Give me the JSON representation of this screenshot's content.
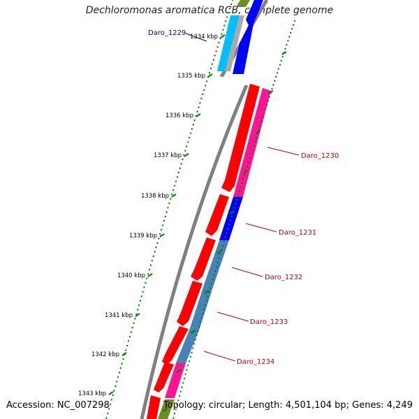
{
  "title": "Dechloromonas aromatica RCB, complete genome",
  "footer": {
    "accession": "Accession: NC_007298",
    "summary": "Topology: circular; Length: 4,501,104 bp; Genes: 4,249"
  },
  "ticks": [
    "1334 kbp",
    "1335 kbp",
    "1336 kbp",
    "1337 kbp",
    "1338 kbp",
    "1339 kbp",
    "1340 kbp",
    "1341 kbp",
    "1342 kbp",
    "1343 kbp"
  ],
  "genes": [
    {
      "label": "Daro_1229",
      "strand": "-",
      "color": "#00008b",
      "highlighted": false
    },
    {
      "label": "Daro_1230",
      "strand": "+",
      "color": "#cc0000",
      "highlighted": true
    },
    {
      "label": "Daro_1231",
      "strand": "+",
      "color": "#cc0000",
      "highlighted": true
    },
    {
      "label": "Daro_1232",
      "strand": "+",
      "color": "#cc0000",
      "highlighted": true
    },
    {
      "label": "Daro_1233",
      "strand": "+",
      "color": "#cc0000",
      "highlighted": true
    },
    {
      "label": "Daro_1234",
      "strand": "+",
      "color": "#cc0000",
      "highlighted": true
    }
  ],
  "colors": {
    "cds": "#ff0000",
    "feature_pink": "#ff1493",
    "feature_blue": "#0000ff",
    "feature_steelblue": "#4682b4",
    "feature_cyan": "#00bfff",
    "feature_olive": "#6b8e23",
    "backbone": "#808080",
    "tick": "#008000",
    "label_red": "#cc0000",
    "label_blue": "#00008b"
  }
}
